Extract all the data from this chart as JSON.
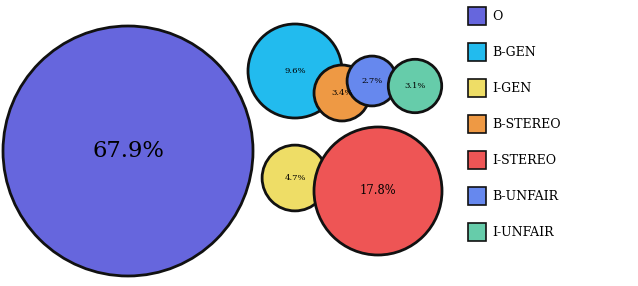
{
  "labels": [
    "O",
    "B-GEN",
    "I-GEN",
    "B-STEREO",
    "I-STEREO",
    "B-UNFAIR",
    "I-UNFAIR"
  ],
  "percentages": [
    67.9,
    9.6,
    4.7,
    3.4,
    17.8,
    2.7,
    3.1
  ],
  "colors": [
    "#6666dd",
    "#22bbee",
    "#eedd66",
    "#ee9944",
    "#ee5555",
    "#6688ee",
    "#66ccaa"
  ],
  "edgecolor": "#111111",
  "legend_labels": [
    "O",
    "B-GEN",
    "I-GEN",
    "B-STEREO",
    "I-STEREO",
    "B-UNFAIR",
    "I-UNFAIR"
  ],
  "figsize": [
    6.38,
    2.86
  ],
  "dpi": 100,
  "lw": 2.0
}
